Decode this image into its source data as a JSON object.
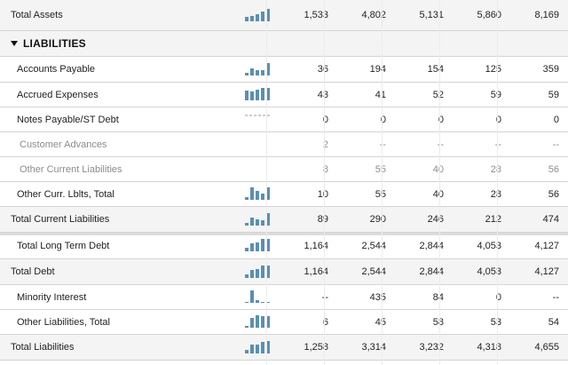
{
  "colors": {
    "spark": "#5b8fb3",
    "dash": "#999999"
  },
  "rows": [
    {
      "type": "total",
      "label": "Total Assets",
      "spark": [
        0.35,
        0.45,
        0.55,
        0.75,
        1.0
      ],
      "values": [
        "1,533",
        "4,802",
        "5,131",
        "5,860",
        "8,169"
      ]
    },
    {
      "type": "section",
      "label": "LIABILITIES"
    },
    {
      "type": "item",
      "label": "Accounts Payable",
      "spark": [
        0.2,
        0.55,
        0.45,
        0.4,
        1.0
      ],
      "values": [
        "36",
        "194",
        "154",
        "125",
        "359"
      ]
    },
    {
      "type": "item",
      "label": "Accrued Expenses",
      "spark": [
        0.75,
        0.7,
        0.88,
        1.0,
        1.0
      ],
      "values": [
        "43",
        "41",
        "52",
        "59",
        "59"
      ]
    },
    {
      "type": "item",
      "label": "Notes Payable/ST Debt",
      "spark": "dash",
      "values": [
        "0",
        "0",
        "0",
        "0",
        "0"
      ]
    },
    {
      "type": "sub",
      "label": "Customer Advances",
      "values": [
        "2",
        "--",
        "--",
        "--",
        "--"
      ]
    },
    {
      "type": "sub",
      "label": "Other Current Liabilities",
      "values": [
        "8",
        "55",
        "40",
        "28",
        "56"
      ]
    },
    {
      "type": "item",
      "label": "Other Curr. Lblts, Total",
      "spark": [
        0.2,
        1.0,
        0.72,
        0.5,
        1.0
      ],
      "values": [
        "10",
        "55",
        "40",
        "28",
        "56"
      ]
    },
    {
      "type": "total",
      "label": "Total Current Liabilities",
      "spark": [
        0.2,
        0.62,
        0.52,
        0.45,
        1.0
      ],
      "values": [
        "89",
        "290",
        "246",
        "212",
        "474"
      ]
    },
    {
      "type": "item",
      "label": "Total Long Term Debt",
      "spark": [
        0.28,
        0.62,
        0.7,
        0.98,
        1.0
      ],
      "shadow": true,
      "values": [
        "1,164",
        "2,544",
        "2,844",
        "4,053",
        "4,127"
      ]
    },
    {
      "type": "total",
      "label": "Total Debt",
      "spark": [
        0.28,
        0.62,
        0.7,
        0.98,
        1.0
      ],
      "values": [
        "1,164",
        "2,544",
        "2,844",
        "4,053",
        "4,127"
      ]
    },
    {
      "type": "item",
      "label": "Minority Interest",
      "spark": [
        0.0,
        1.0,
        0.2,
        0.0,
        0.0
      ],
      "values": [
        "--",
        "435",
        "84",
        "0",
        "--"
      ]
    },
    {
      "type": "item",
      "label": "Other Liabilities, Total",
      "spark": [
        0.12,
        0.8,
        1.0,
        0.9,
        0.92
      ],
      "values": [
        "6",
        "45",
        "58",
        "53",
        "54"
      ]
    },
    {
      "type": "total",
      "label": "Total Liabilities",
      "spark": [
        0.28,
        0.72,
        0.7,
        0.92,
        1.0
      ],
      "values": [
        "1,258",
        "3,314",
        "3,232",
        "4,318",
        "4,655"
      ]
    }
  ]
}
